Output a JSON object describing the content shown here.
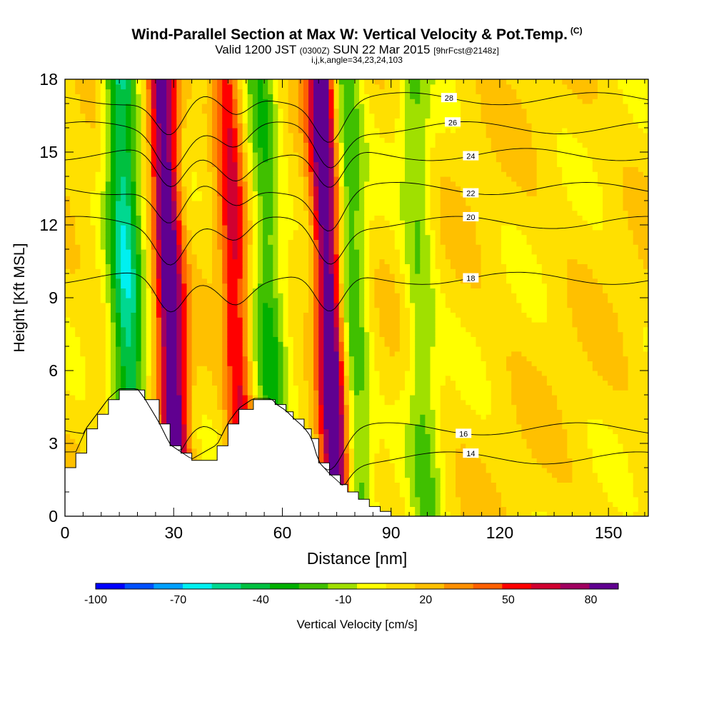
{
  "title": {
    "main": "Wind-Parallel Section at Max W: Vertical Velocity & Pot.Temp.",
    "copyright": "(C)",
    "valid_a": "Valid 1200 JST",
    "valid_z": "(0300Z)",
    "valid_b": "SUN 22 Mar 2015",
    "valid_fcst": "[9hrFcst@2148z]",
    "ijk": "i,j,k,angle=34,23,24,103"
  },
  "chart_data": {
    "type": "heatmap",
    "xlabel": "Distance [nm]",
    "ylabel": "Height [Kft MSL]",
    "xlim": [
      0,
      161
    ],
    "ylim": [
      0,
      18
    ],
    "x_ticks": [
      0,
      30,
      60,
      90,
      120,
      150
    ],
    "y_ticks": [
      0,
      3,
      6,
      9,
      12,
      15,
      18
    ],
    "colorbar": {
      "label": "Vertical Velocity [cm/s]",
      "tick_labels": [
        "-100",
        "-70",
        "-40",
        "-10",
        "20",
        "50",
        "80"
      ],
      "tick_values": [
        -100,
        -70,
        -40,
        -10,
        20,
        50,
        80
      ],
      "range": [
        -100,
        90
      ],
      "step": 10,
      "colors": [
        "#0000ff",
        "#0050ff",
        "#00a0ff",
        "#00f0f0",
        "#00d890",
        "#00c040",
        "#00b000",
        "#40c000",
        "#a0e000",
        "#ffff00",
        "#ffe000",
        "#ffc000",
        "#ff9000",
        "#ff6000",
        "#ff0000",
        "#d00030",
        "#a00060",
        "#600090"
      ]
    },
    "theta_contours": [
      {
        "label": "14",
        "value": 14
      },
      {
        "label": "16",
        "value": 16
      },
      {
        "label": "18",
        "value": 18
      },
      {
        "label": "20",
        "value": 20
      },
      {
        "label": "22",
        "value": 22
      },
      {
        "label": "24",
        "value": 24
      },
      {
        "label": "26",
        "value": 26
      },
      {
        "label": "28",
        "value": 28
      }
    ],
    "updrafts": [
      {
        "x": 29,
        "w": 80
      },
      {
        "x": 47,
        "w": 45
      },
      {
        "x": 73,
        "w": 85
      }
    ],
    "downdrafts": [
      {
        "x": 17,
        "w": -60
      },
      {
        "x": 56,
        "w": -35
      },
      {
        "x": 79,
        "w": -35
      },
      {
        "x": 98,
        "w": -25
      }
    ],
    "terrain": [
      {
        "x": 0,
        "h": 2.0
      },
      {
        "x": 3,
        "h": 2.6
      },
      {
        "x": 6,
        "h": 3.6
      },
      {
        "x": 9,
        "h": 4.2
      },
      {
        "x": 12,
        "h": 4.8
      },
      {
        "x": 15,
        "h": 5.2
      },
      {
        "x": 20,
        "h": 5.2
      },
      {
        "x": 22,
        "h": 4.8
      },
      {
        "x": 26,
        "h": 3.8
      },
      {
        "x": 29,
        "h": 2.9
      },
      {
        "x": 32,
        "h": 2.6
      },
      {
        "x": 35,
        "h": 2.3
      },
      {
        "x": 42,
        "h": 2.9
      },
      {
        "x": 45,
        "h": 3.8
      },
      {
        "x": 48,
        "h": 4.4
      },
      {
        "x": 52,
        "h": 4.8
      },
      {
        "x": 57,
        "h": 4.8
      },
      {
        "x": 58,
        "h": 4.6
      },
      {
        "x": 61,
        "h": 4.3
      },
      {
        "x": 63,
        "h": 4.0
      },
      {
        "x": 66,
        "h": 3.6
      },
      {
        "x": 68,
        "h": 3.2
      },
      {
        "x": 70,
        "h": 2.2
      },
      {
        "x": 73,
        "h": 1.7
      },
      {
        "x": 76,
        "h": 1.3
      },
      {
        "x": 78,
        "h": 1.0
      },
      {
        "x": 81,
        "h": 0.7
      },
      {
        "x": 84,
        "h": 0.4
      },
      {
        "x": 87,
        "h": 0.2
      },
      {
        "x": 90,
        "h": 0.0
      },
      {
        "x": 161,
        "h": 0.0
      }
    ]
  }
}
